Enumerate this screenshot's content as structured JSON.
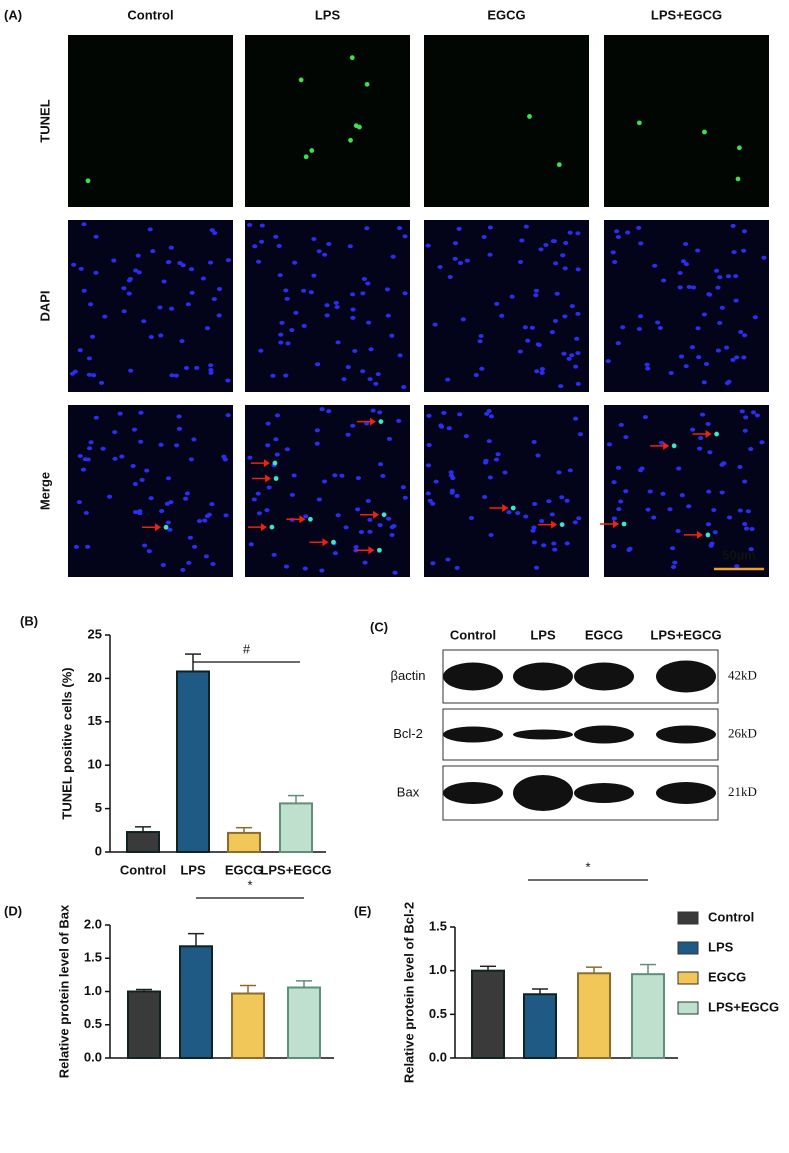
{
  "panel_a": {
    "label": "(A)",
    "columns": [
      "Control",
      "LPS",
      "EGCG",
      "LPS+EGCG"
    ],
    "rows": [
      "TUNEL",
      "DAPI",
      "Merge"
    ],
    "scale_bar": "50µm"
  },
  "panel_c": {
    "label": "(C)",
    "columns": [
      "Control",
      "LPS",
      "EGCG",
      "LPS+EGCG"
    ],
    "bands": [
      {
        "name": "βactin",
        "size": "42kD"
      },
      {
        "name": "Bcl-2",
        "size": "26kD"
      },
      {
        "name": "Bax",
        "size": "21kD"
      }
    ]
  },
  "chart_data": [
    {
      "type": "bar",
      "label": "(B)",
      "y_label": "TUNEL positive cells (%)",
      "annotation": "#",
      "categories": [
        "Control",
        "LPS",
        "EGCG",
        "LPS+EGCG"
      ],
      "values": [
        2.3,
        20.8,
        2.2,
        5.6
      ],
      "errors": [
        0.6,
        2.0,
        0.6,
        0.9
      ],
      "colors": [
        "#3a3a3a",
        "#1f5a84",
        "#f1c75a",
        "#bfe0cd"
      ],
      "ylim": [
        0,
        25
      ],
      "yticks": [
        0,
        5,
        10,
        15,
        20,
        25
      ]
    },
    {
      "type": "bar",
      "label": "(D)",
      "y_label": "Relative protein level of Bax",
      "annotation": "*",
      "values": [
        1.0,
        1.68,
        0.97,
        1.06
      ],
      "errors": [
        0.03,
        0.19,
        0.12,
        0.1
      ],
      "colors": [
        "#3a3a3a",
        "#1f5a84",
        "#f1c75a",
        "#bfe0cd"
      ],
      "ylim": [
        0,
        2.0
      ],
      "yticks": [
        {
          "value": 0,
          "label": "0.0"
        },
        0.5,
        {
          "value": 1,
          "label": "1.0"
        },
        1.5,
        {
          "value": 2,
          "label": "2.0"
        }
      ]
    },
    {
      "type": "bar",
      "label": "(E)",
      "y_label": "Relative protein level of Bcl-2",
      "annotation": "*",
      "categories": [
        "Control",
        "LPS",
        "EGCG",
        "LPS+EGCG"
      ],
      "values": [
        1.0,
        0.73,
        0.97,
        0.96
      ],
      "errors": [
        0.05,
        0.06,
        0.07,
        0.11
      ],
      "colors": [
        "#3a3a3a",
        "#1f5a84",
        "#f1c75a",
        "#bfe0cd"
      ],
      "ylim": [
        0,
        1.5
      ],
      "yticks": [
        {
          "value": 0,
          "label": "0.0"
        },
        0.5,
        {
          "value": 1,
          "label": "1.0"
        },
        1.5
      ]
    }
  ]
}
